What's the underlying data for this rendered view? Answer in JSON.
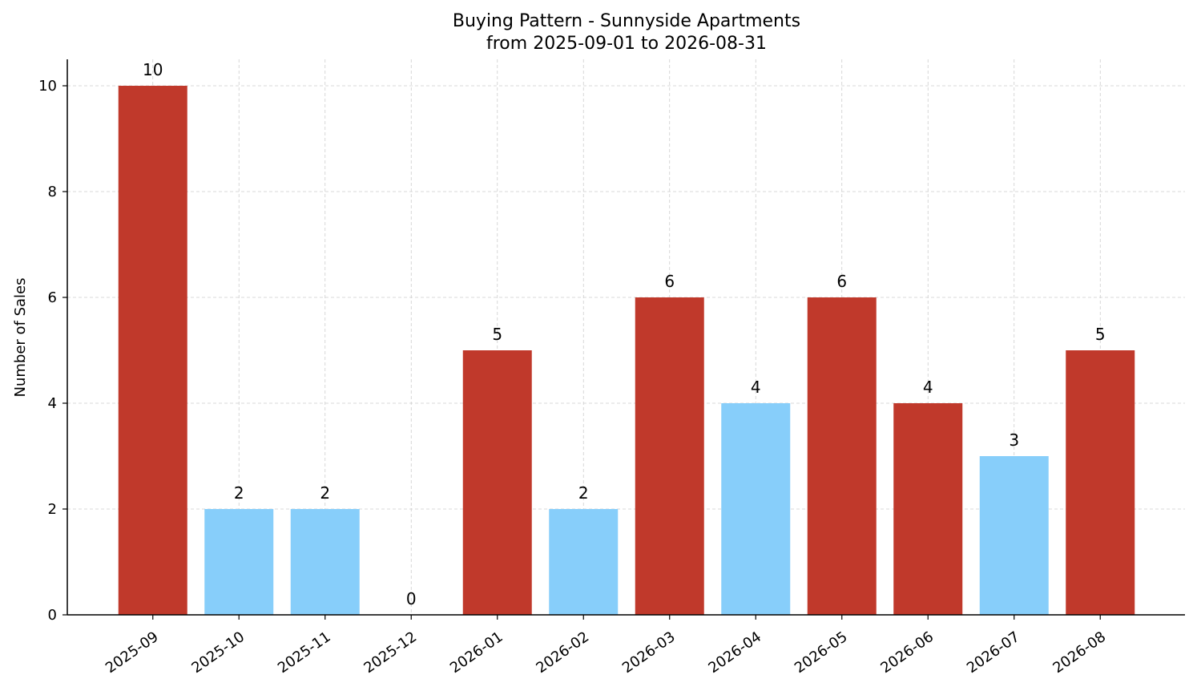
{
  "chart_data": {
    "type": "bar",
    "title": "Buying Pattern - Sunnyside Apartments",
    "subtitle": "from 2025-09-01 to 2026-08-31",
    "xlabel": "",
    "ylabel": "Number of Sales",
    "categories": [
      "2025-09",
      "2025-10",
      "2025-11",
      "2025-12",
      "2026-01",
      "2026-02",
      "2026-03",
      "2026-04",
      "2026-05",
      "2026-06",
      "2026-07",
      "2026-08"
    ],
    "values": [
      10,
      2,
      2,
      0,
      5,
      2,
      6,
      4,
      6,
      4,
      3,
      5
    ],
    "value_labels": [
      "10",
      "2",
      "2",
      "0",
      "5",
      "2",
      "6",
      "4",
      "6",
      "4",
      "3",
      "5"
    ],
    "bar_colors": [
      "#c0392b",
      "#87cefa",
      "#87cefa",
      "#87cefa",
      "#c0392b",
      "#87cefa",
      "#c0392b",
      "#87cefa",
      "#c0392b",
      "#c0392b",
      "#87cefa",
      "#c0392b"
    ],
    "colors": {
      "high": "#c0392b",
      "low": "#87cefa",
      "grid": "#cccccc",
      "axis": "#000000"
    },
    "ylim": [
      0,
      10.5
    ],
    "yticks": [
      0,
      2,
      4,
      6,
      8,
      10
    ],
    "ytick_labels": [
      "0",
      "2",
      "4",
      "6",
      "8",
      "10"
    ],
    "grid": true,
    "legend": false
  }
}
